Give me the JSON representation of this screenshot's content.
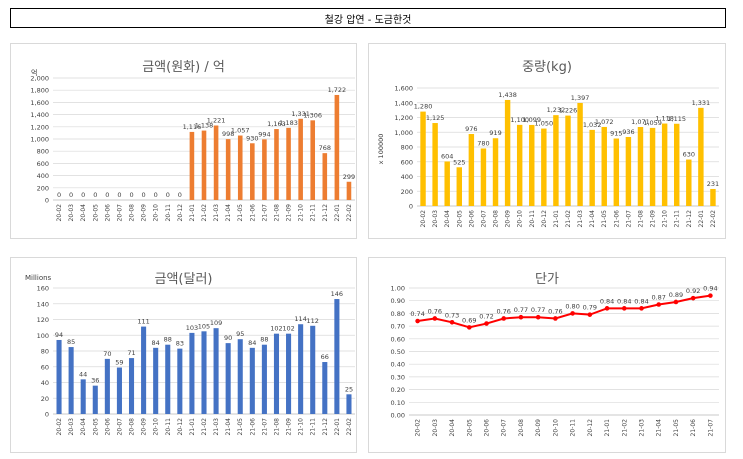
{
  "page_title": "철강 압연 - 도금한것",
  "chart_data": [
    {
      "id": "krw",
      "type": "bar",
      "title": "금액(원화) / 억",
      "ylabel": "억",
      "ylim": [
        0,
        2000
      ],
      "yticks": [
        0,
        200,
        400,
        600,
        800,
        1000,
        1200,
        1400,
        1600,
        1800,
        2000
      ],
      "ytick_labels": [
        "0",
        "200",
        "400",
        "600",
        "800",
        "1,000",
        "1,200",
        "1,400",
        "1,600",
        "1,800",
        "2,000"
      ],
      "color": "#ED7D31",
      "categories": [
        "20-02",
        "20-03",
        "20-04",
        "20-05",
        "20-06",
        "20-07",
        "20-08",
        "20-09",
        "20-10",
        "20-11",
        "20-12",
        "21-01",
        "21-02",
        "21-03",
        "21-04",
        "21-05",
        "21-06",
        "21-07",
        "21-08",
        "21-09",
        "21-10",
        "21-11",
        "21-12",
        "22-01",
        "22-02"
      ],
      "values": [
        0,
        0,
        0,
        0,
        0,
        0,
        0,
        0,
        0,
        0,
        0,
        1116,
        1138,
        1221,
        998,
        1057,
        930,
        994,
        1163,
        1183,
        1331,
        1306,
        768,
        1722,
        299
      ],
      "labels": [
        "0",
        "0",
        "0",
        "0",
        "0",
        "0",
        "0",
        "0",
        "0",
        "0",
        "0",
        "1,116",
        "1,138",
        "1,221",
        "998",
        "1,057",
        "930",
        "994",
        "1,163",
        "1,183",
        "1,331",
        "1,306",
        "768",
        "1,722",
        "299"
      ],
      "grid": true
    },
    {
      "id": "kg",
      "type": "bar",
      "title": "중량(kg)",
      "ylabel": "x 100000",
      "ylim": [
        0,
        1600
      ],
      "yticks": [
        0,
        200,
        400,
        600,
        800,
        1000,
        1200,
        1400,
        1600
      ],
      "ytick_labels": [
        "0",
        "200",
        "400",
        "600",
        "800",
        "1,000",
        "1,200",
        "1,400",
        "1,600"
      ],
      "color": "#FFC000",
      "categories": [
        "20-02",
        "20-03",
        "20-04",
        "20-05",
        "20-06",
        "20-07",
        "20-08",
        "20-09",
        "20-10",
        "20-11",
        "20-12",
        "21-01",
        "21-02",
        "21-03",
        "21-04",
        "21-05",
        "21-06",
        "21-07",
        "21-08",
        "21-09",
        "21-10",
        "21-11",
        "21-12",
        "22-01",
        "22-02"
      ],
      "values": [
        1280,
        1125,
        604,
        525,
        976,
        780,
        919,
        1438,
        1100,
        1099,
        1050,
        1232,
        1226,
        1397,
        1032,
        1072,
        915,
        936,
        1071,
        1059,
        1118,
        1115,
        630,
        1331,
        231
      ],
      "labels": [
        "1,280",
        "1,125",
        "604",
        "525",
        "976",
        "780",
        "919",
        "1,438",
        "1,100",
        "1,099",
        "1,050",
        "1,232",
        "1,226",
        "1,397",
        "1,032",
        "1,072",
        "915",
        "936",
        "1,071",
        "1,059",
        "1,118",
        "1,115",
        "630",
        "1,331",
        "231"
      ],
      "grid": true
    },
    {
      "id": "usd",
      "type": "bar",
      "title": "금액(달러)",
      "ylabel": "Millions",
      "ylim": [
        0,
        160
      ],
      "yticks": [
        0,
        20,
        40,
        60,
        80,
        100,
        120,
        140,
        160
      ],
      "ytick_labels": [
        "0",
        "20",
        "40",
        "60",
        "80",
        "100",
        "120",
        "140",
        "160"
      ],
      "color": "#4472C4",
      "categories": [
        "20-02",
        "20-03",
        "20-04",
        "20-05",
        "20-06",
        "20-07",
        "20-08",
        "20-09",
        "20-10",
        "20-11",
        "20-12",
        "21-01",
        "21-02",
        "21-03",
        "21-04",
        "21-05",
        "21-06",
        "21-07",
        "21-08",
        "21-09",
        "21-10",
        "21-11",
        "21-12",
        "22-01",
        "22-02"
      ],
      "values": [
        94,
        85,
        44,
        36,
        70,
        59,
        71,
        111,
        84,
        88,
        83,
        103,
        105,
        109,
        90,
        95,
        84,
        88,
        102,
        102,
        114,
        112,
        66,
        146,
        25
      ],
      "labels": [
        "94",
        "85",
        "44",
        "36",
        "70",
        "59",
        "71",
        "111",
        "84",
        "88",
        "83",
        "103",
        "105",
        "109",
        "90",
        "95",
        "84",
        "88",
        "102",
        "102",
        "114",
        "112",
        "66",
        "146",
        "25"
      ],
      "grid": true
    },
    {
      "id": "price",
      "type": "line",
      "title": "단가",
      "ylim": [
        0,
        1.0
      ],
      "yticks": [
        0,
        0.1,
        0.2,
        0.3,
        0.4,
        0.5,
        0.6,
        0.7,
        0.8,
        0.9,
        1.0
      ],
      "ytick_labels": [
        "0.00",
        "0.10",
        "0.20",
        "0.30",
        "0.40",
        "0.50",
        "0.60",
        "0.70",
        "0.80",
        "0.90",
        "1.00"
      ],
      "color": "#FF0000",
      "categories": [
        "20-02",
        "20-03",
        "20-04",
        "20-05",
        "20-06",
        "20-07",
        "20-08",
        "20-09",
        "20-10",
        "20-11",
        "20-12",
        "21-01",
        "21-02",
        "21-03",
        "21-04",
        "21-05",
        "21-06",
        "21-07"
      ],
      "values": [
        0.74,
        0.76,
        0.73,
        0.69,
        0.72,
        0.76,
        0.77,
        0.77,
        0.76,
        0.8,
        0.79,
        0.84,
        0.84,
        0.84,
        0.87,
        0.89,
        0.92,
        0.94
      ],
      "labels": [
        "0.74",
        "0.76",
        "0.73",
        "0.69",
        "0.72",
        "0.76",
        "0.77",
        "0.77",
        "0.76",
        "0.80",
        "0.79",
        "0.84",
        "0.84",
        "0.84",
        "0.87",
        "0.89",
        "0.92",
        "0.94"
      ],
      "grid": true
    }
  ]
}
